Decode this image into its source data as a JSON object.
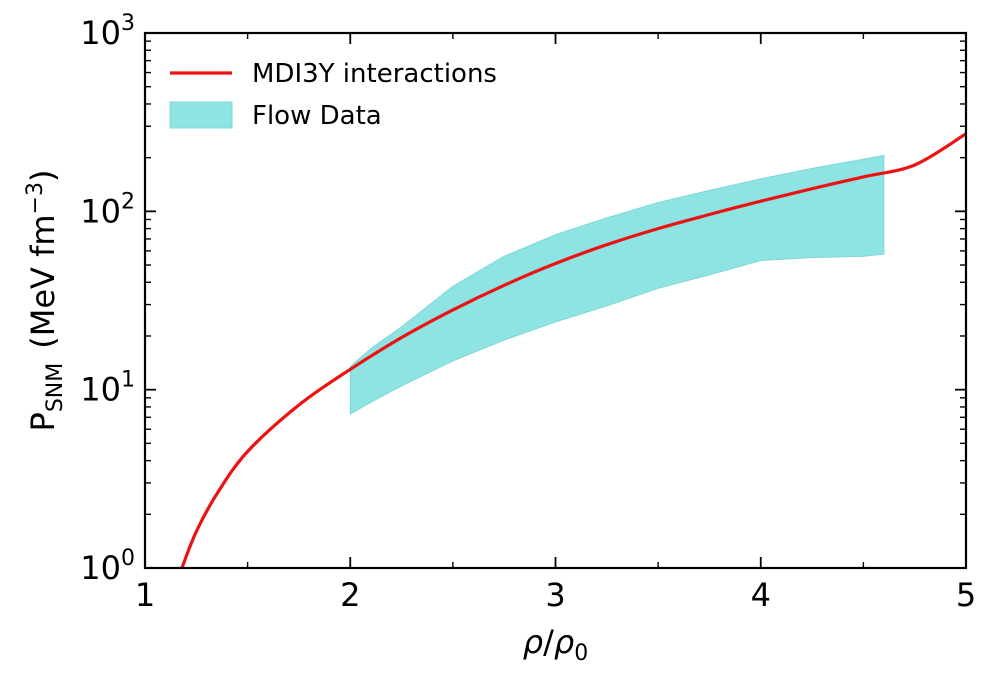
{
  "chart_data": {
    "type": "line",
    "y_scale": "log",
    "xlim": [
      1,
      5
    ],
    "ylim": [
      1,
      1000
    ],
    "x_ticks": [
      {
        "value": 1,
        "label": "1"
      },
      {
        "value": 2,
        "label": "2"
      },
      {
        "value": 3,
        "label": "3"
      },
      {
        "value": 4,
        "label": "4"
      },
      {
        "value": 5,
        "label": "5"
      }
    ],
    "y_ticks": [
      {
        "value": 1,
        "base": "10",
        "exp": "0"
      },
      {
        "value": 10,
        "base": "10",
        "exp": "1"
      },
      {
        "value": 100,
        "base": "10",
        "exp": "2"
      },
      {
        "value": 1000,
        "base": "10",
        "exp": "3"
      }
    ],
    "xlabel": {
      "a": "ρ",
      "slash": "/",
      "b": "ρ",
      "sub": "0"
    },
    "ylabel": {
      "p": "P",
      "sub": "SNM",
      "unit": "(MeV fm",
      "sup": "−3",
      "close": ")"
    },
    "grid": false,
    "legend_position": "top-left",
    "legend": [
      {
        "label": "MDI3Y interactions",
        "kind": "line",
        "color": "#ee1111"
      },
      {
        "label": "Flow Data",
        "kind": "band",
        "color": "#8ee3e3"
      }
    ],
    "series": [
      {
        "name": "MDI3Y interactions",
        "kind": "line",
        "color": "#ee1111",
        "x": [
          1.18,
          1.25,
          1.35,
          1.5,
          1.75,
          2.0,
          2.25,
          2.5,
          2.75,
          3.0,
          3.25,
          3.5,
          3.75,
          4.0,
          4.25,
          4.5,
          4.75,
          5.0
        ],
        "y": [
          1.0,
          1.6,
          2.6,
          4.5,
          8.2,
          13.0,
          19.6,
          28.0,
          38.5,
          51.0,
          65.0,
          80.0,
          96.0,
          114.0,
          134.0,
          156.0,
          182.0,
          272.0
        ]
      },
      {
        "name": "Flow Data",
        "kind": "band",
        "color": "#8ee3e3",
        "x": [
          2.0,
          2.1,
          2.25,
          2.5,
          2.75,
          3.0,
          3.25,
          3.5,
          3.75,
          4.0,
          4.25,
          4.5,
          4.6
        ],
        "y_low": [
          7.3,
          8.5,
          10.5,
          14.5,
          19.0,
          24.0,
          29.5,
          37.0,
          44.0,
          53.0,
          55.0,
          56.0,
          57.5
        ],
        "y_high": [
          13.5,
          17.0,
          22.5,
          38.0,
          56.0,
          74.0,
          92.0,
          112.0,
          131.0,
          152.0,
          174.0,
          196.0,
          206.0
        ]
      }
    ]
  }
}
